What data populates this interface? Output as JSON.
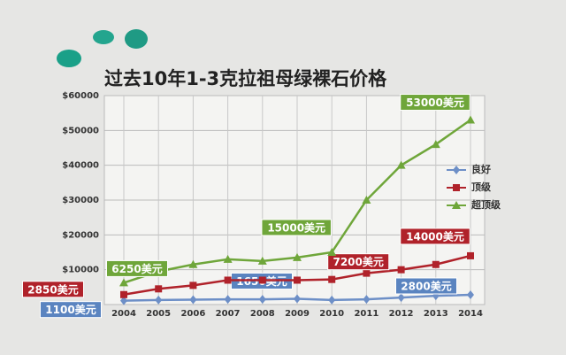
{
  "chart_data": {
    "type": "line",
    "title": "过去10年1-3克拉祖母绿裸石价格",
    "categories": [
      "2004",
      "2005",
      "2006",
      "2007",
      "2008",
      "2009",
      "2010",
      "2011",
      "2012",
      "2013",
      "2014"
    ],
    "ylim": [
      0,
      60000
    ],
    "yticks": [
      {
        "value": 10000,
        "label": "$10000"
      },
      {
        "value": 20000,
        "label": "$20000"
      },
      {
        "value": 30000,
        "label": "$30000"
      },
      {
        "value": 40000,
        "label": "$40000"
      },
      {
        "value": 50000,
        "label": "$50000"
      },
      {
        "value": 60000,
        "label": "$60000"
      }
    ],
    "grid": true,
    "series": [
      {
        "name": "良好",
        "color": "#6d8fc7",
        "marker": "diamond",
        "label_color": "#5a84c0",
        "values": [
          1100,
          1300,
          1400,
          1500,
          1500,
          1650,
          1300,
          1500,
          2000,
          2500,
          2800
        ],
        "value_labels": [
          "1100美元",
          null,
          null,
          null,
          null,
          "1650美元",
          null,
          null,
          null,
          null,
          "2800美元"
        ]
      },
      {
        "name": "顶级",
        "color": "#b0222a",
        "marker": "square",
        "label_color": "#b0222a",
        "values": [
          2850,
          4500,
          5500,
          7000,
          7000,
          7000,
          7200,
          9000,
          10000,
          11500,
          14000
        ],
        "value_labels": [
          "2850美元",
          null,
          null,
          null,
          null,
          null,
          "7200美元",
          null,
          null,
          null,
          "14000美元"
        ]
      },
      {
        "name": "超顶级",
        "color": "#6fa63a",
        "marker": "triangle",
        "label_color": "#6fa63a",
        "values": [
          6250,
          9500,
          11500,
          13000,
          12500,
          13500,
          15000,
          30000,
          40000,
          46000,
          53000
        ],
        "value_labels": [
          "6250美元",
          null,
          null,
          null,
          null,
          null,
          "15000美元",
          null,
          null,
          null,
          "53000美元"
        ]
      }
    ]
  }
}
